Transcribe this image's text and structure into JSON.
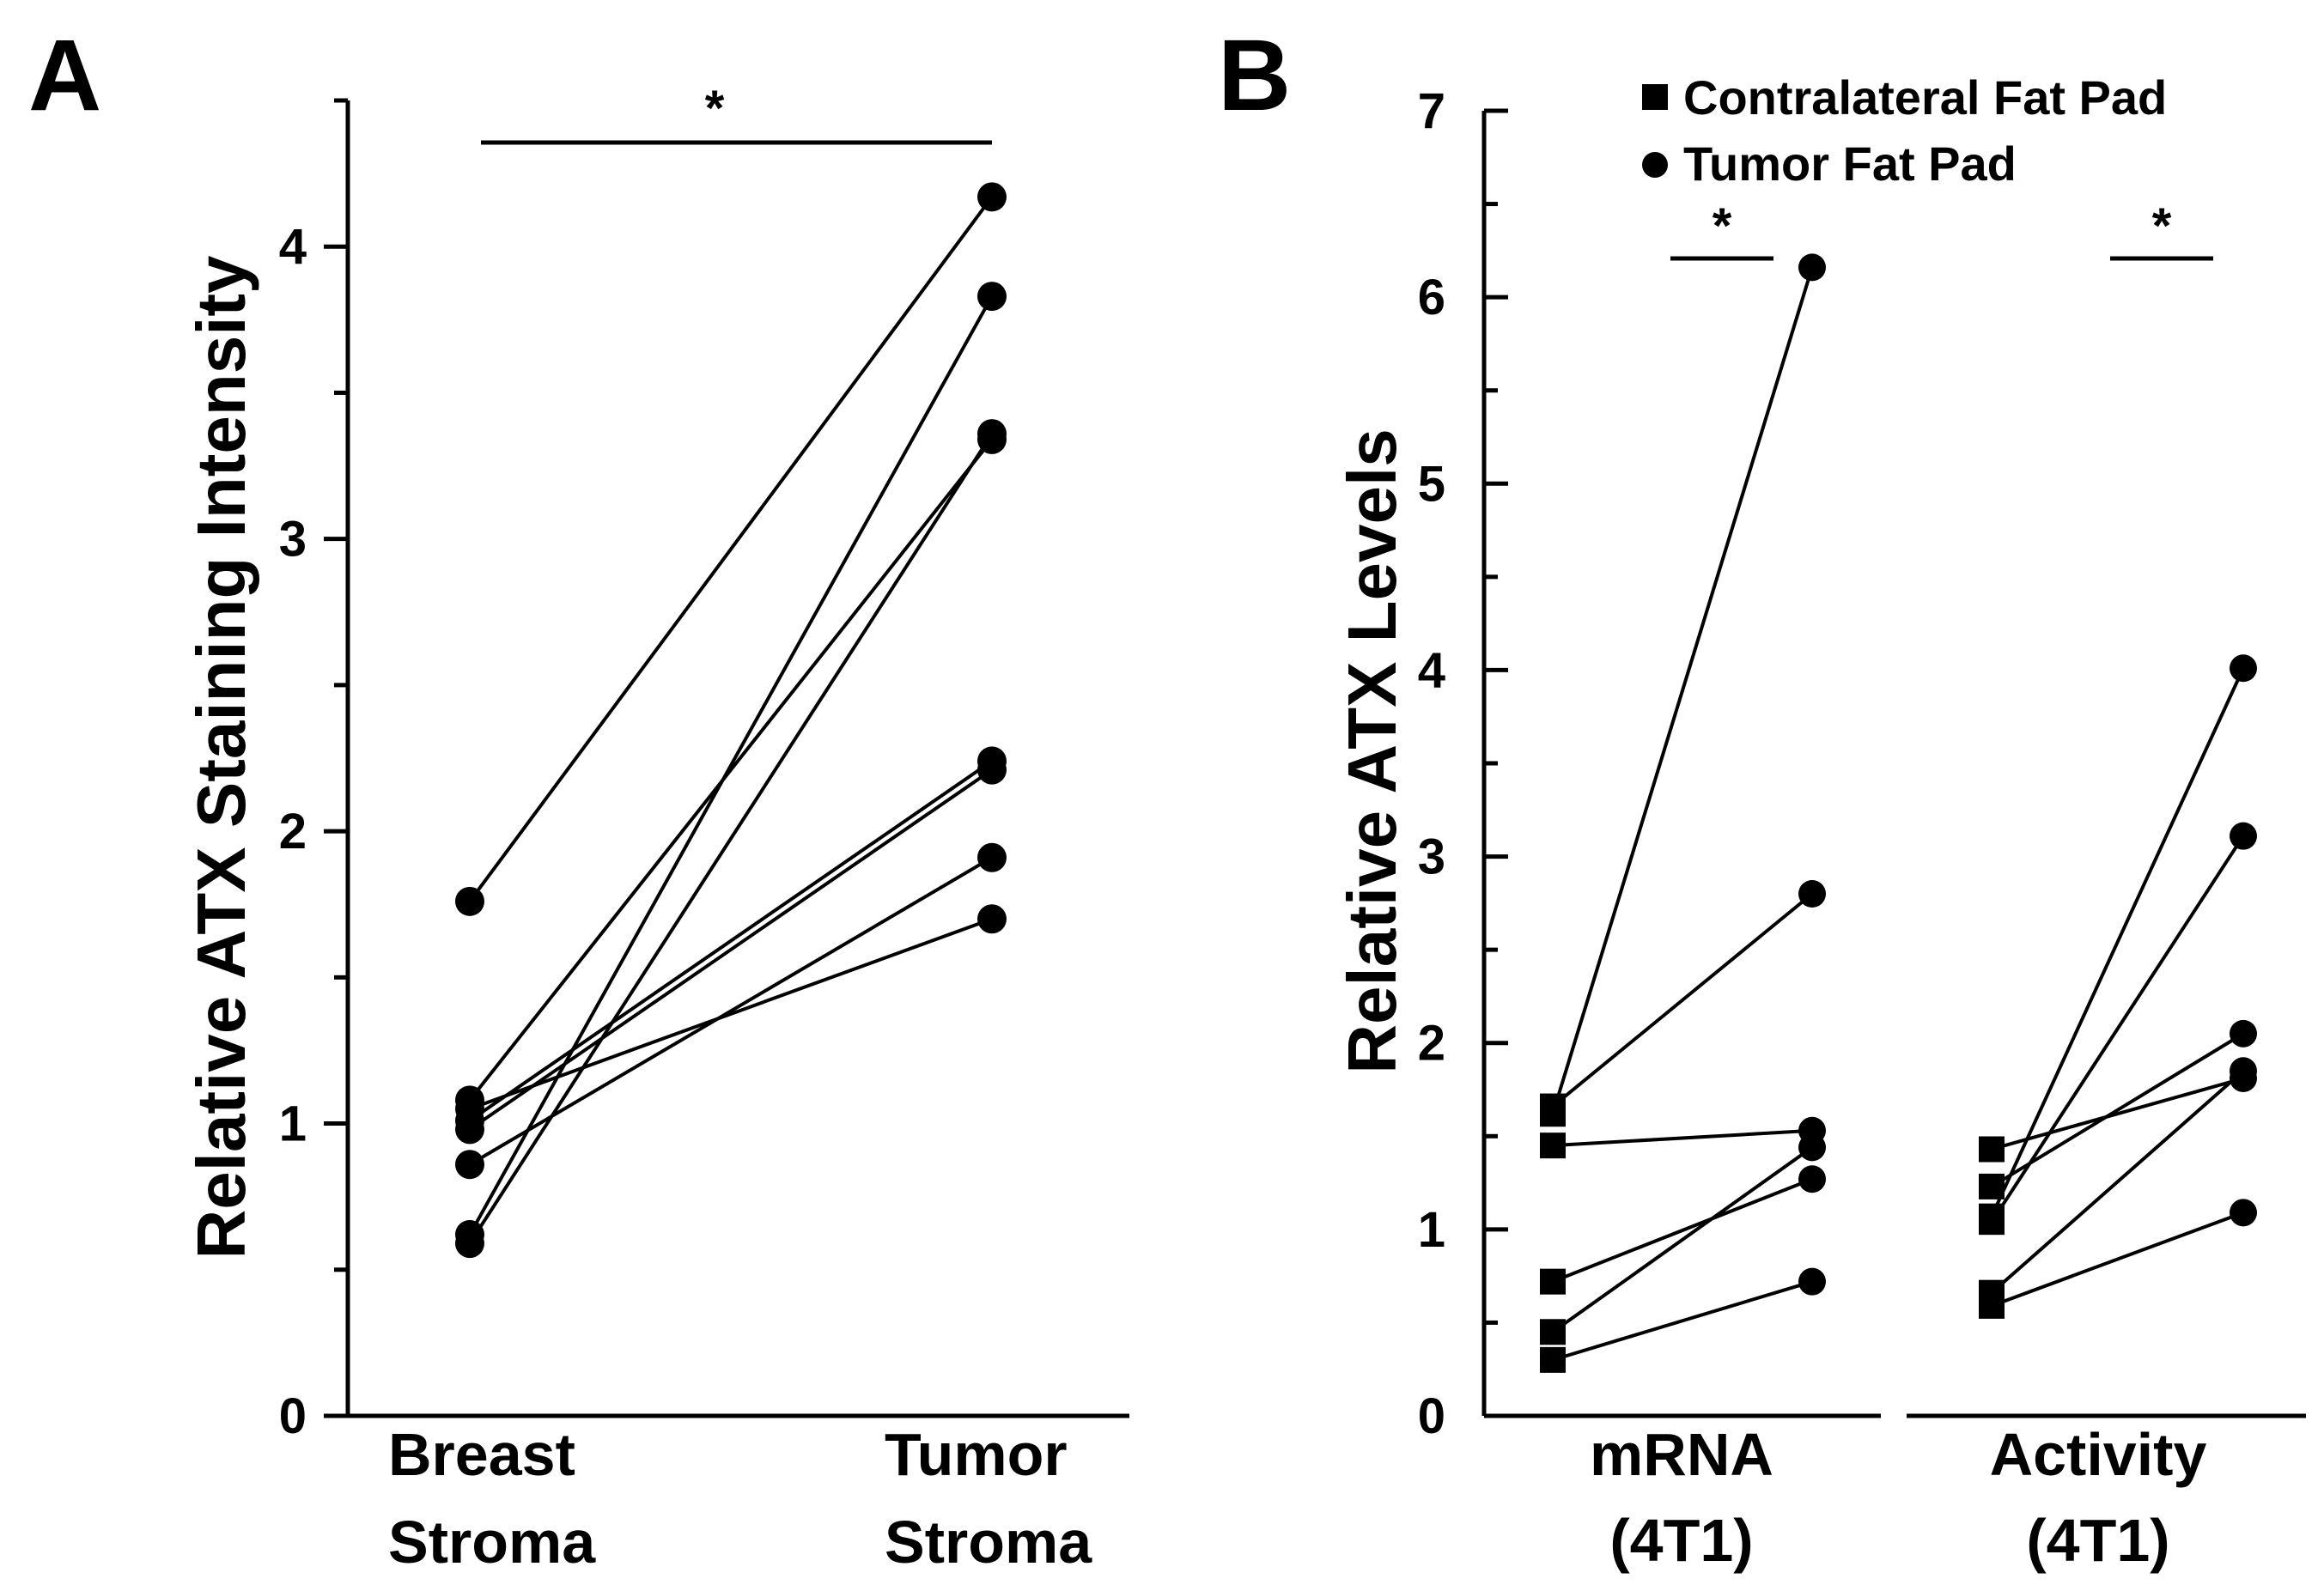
{
  "chart_data": [
    {
      "panel": "A",
      "type": "scatter",
      "ylabel": "Relative ATX Staining Intensity",
      "categories": [
        [
          "Breast",
          "Stroma"
        ],
        [
          "Tumor",
          "Stroma"
        ]
      ],
      "ylim": [
        0,
        4.5
      ],
      "yticks": [
        0,
        1,
        2,
        3,
        4
      ],
      "marker": "circle",
      "pairs": [
        [
          1.76,
          4.17
        ],
        [
          0.62,
          3.83
        ],
        [
          0.59,
          3.36
        ],
        [
          1.08,
          3.34
        ],
        [
          1.01,
          2.24
        ],
        [
          0.98,
          2.21
        ],
        [
          0.86,
          1.91
        ],
        [
          1.05,
          1.7
        ]
      ],
      "significance": [
        {
          "label": "*",
          "from": 0,
          "to": 1
        }
      ]
    },
    {
      "panel": "B",
      "type": "scatter",
      "ylabel": "Relative ATX Levels",
      "ylim": [
        0,
        7
      ],
      "yticks": [
        0,
        1,
        2,
        3,
        4,
        5,
        6,
        7
      ],
      "legend": [
        {
          "label": "Contralateral Fat Pad",
          "marker": "square"
        },
        {
          "label": "Tumor Fat Pad",
          "marker": "circle"
        }
      ],
      "groups": [
        {
          "label": [
            "mRNA",
            "(4T1)"
          ],
          "significance": "*",
          "pairs": [
            [
              1.66,
              2.8
            ],
            [
              1.62,
              6.16
            ],
            [
              1.45,
              1.53
            ],
            [
              0.72,
              1.27
            ],
            [
              0.45,
              1.44
            ],
            [
              0.3,
              0.72
            ]
          ]
        },
        {
          "label": [
            "Activity",
            "(4T1)"
          ],
          "significance": "*",
          "pairs": [
            [
              1.43,
              1.81
            ],
            [
              1.23,
              2.05
            ],
            [
              1.04,
              3.11
            ],
            [
              1.07,
              4.01
            ],
            [
              0.66,
              1.85
            ],
            [
              0.59,
              1.09
            ]
          ]
        }
      ]
    }
  ]
}
